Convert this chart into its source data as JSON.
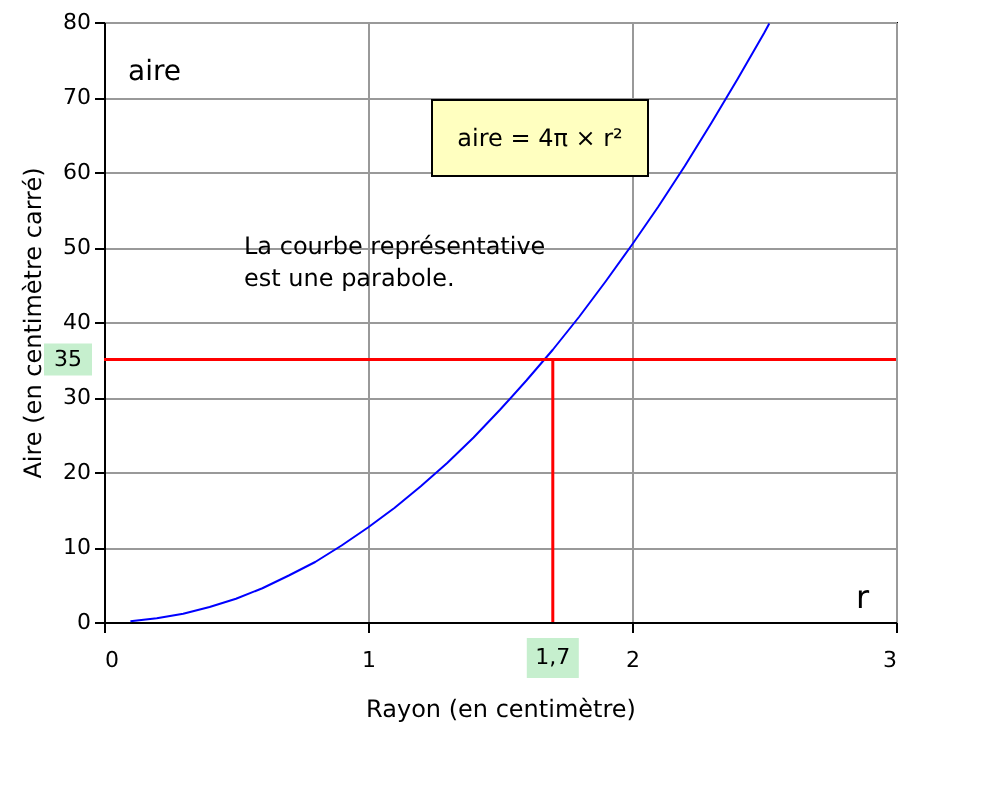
{
  "chart_data": {
    "type": "line",
    "xlabel": "Rayon (en centimètre)",
    "ylabel": "Aire (en centimètre carré)",
    "x": [
      0.1,
      0.2,
      0.3,
      0.4,
      0.5,
      0.6,
      0.7,
      0.8,
      0.9,
      1.0,
      1.1,
      1.2,
      1.3,
      1.4,
      1.5,
      1.6,
      1.7,
      1.8,
      1.9,
      2.0,
      2.1,
      2.2,
      2.3,
      2.4,
      2.5,
      2.52
    ],
    "series": [
      {
        "color": "#0000ff",
        "values": [
          0.1,
          0.5,
          1.1,
          2.0,
          3.1,
          4.5,
          6.2,
          8.0,
          10.2,
          12.6,
          15.2,
          18.1,
          21.2,
          24.6,
          28.3,
          32.2,
          36.3,
          40.7,
          45.4,
          50.3,
          55.4,
          60.8,
          66.5,
          72.4,
          78.5,
          79.8
        ]
      }
    ],
    "xlim": [
      0,
      3
    ],
    "xticks": [
      0,
      1,
      2,
      3
    ],
    "ylim": [
      0,
      80
    ],
    "yticks": [
      0,
      10,
      20,
      30,
      40,
      50,
      60,
      70,
      80
    ],
    "grid": true,
    "marker": "none",
    "line_style": "solid",
    "ref_lines": [
      {
        "axis": "y",
        "value": 35,
        "label": "35",
        "color": "#ff0000"
      },
      {
        "axis": "x",
        "value": 1.7,
        "label": "1,7",
        "color": "#ff0000"
      }
    ],
    "annotations": [
      "aire",
      "r",
      "aire = 4π × r²",
      "La courbe représentative\nest une parabole."
    ]
  }
}
